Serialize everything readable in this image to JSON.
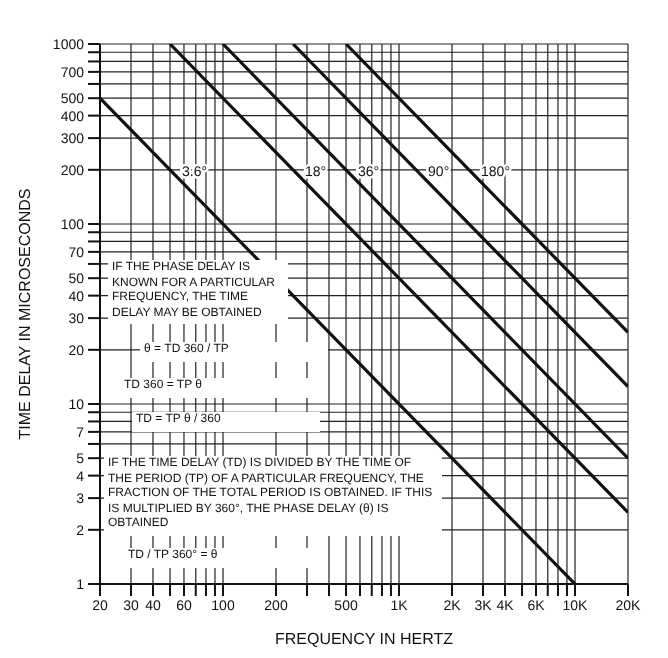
{
  "chart_data": {
    "type": "line",
    "xlabel": "FREQUENCY IN HERTZ",
    "ylabel": "TIME DELAY IN MICROSECONDS",
    "log": "xy",
    "grid": true,
    "marker": "none",
    "line_style": "solid",
    "xlim": [
      20,
      20000
    ],
    "ylim": [
      1,
      1000
    ],
    "xticks": [
      20,
      30,
      40,
      {
        "value": 50,
        "label": null
      },
      60,
      {
        "value": 70,
        "label": null
      },
      {
        "value": 80,
        "label": null
      },
      {
        "value": 90,
        "label": null
      },
      100,
      200,
      {
        "value": 300,
        "label": null
      },
      {
        "value": 400,
        "label": null
      },
      500,
      {
        "value": 600,
        "label": null
      },
      {
        "value": 700,
        "label": null
      },
      {
        "value": 800,
        "label": null
      },
      {
        "value": 900,
        "label": null
      },
      {
        "value": 1000,
        "label": "1K"
      },
      {
        "value": 2000,
        "label": "2K"
      },
      {
        "value": 3000,
        "label": "3K"
      },
      {
        "value": 4000,
        "label": "4K"
      },
      {
        "value": 5000,
        "label": null
      },
      {
        "value": 6000,
        "label": "6K"
      },
      {
        "value": 7000,
        "label": null
      },
      {
        "value": 8000,
        "label": null
      },
      {
        "value": 9000,
        "label": null
      },
      {
        "value": 10000,
        "label": "10K"
      },
      {
        "value": 20000,
        "label": "20K"
      }
    ],
    "yticks": [
      1,
      2,
      3,
      4,
      5,
      {
        "value": 6,
        "label": null
      },
      7,
      {
        "value": 8,
        "label": null
      },
      {
        "value": 9,
        "label": null
      },
      10,
      20,
      30,
      40,
      50,
      {
        "value": 60,
        "label": null
      },
      70,
      {
        "value": 80,
        "label": null
      },
      {
        "value": 90,
        "label": null
      },
      100,
      200,
      300,
      400,
      500,
      {
        "value": 600,
        "label": null
      },
      700,
      {
        "value": 800,
        "label": null
      },
      {
        "value": 900,
        "label": null
      },
      1000
    ],
    "series": [
      {
        "name": "3.6°",
        "color": "#111111",
        "x": [
          20,
          50,
          10000
        ],
        "values": [
          500,
          200,
          1
        ]
      },
      {
        "name": "18°",
        "color": "#111111",
        "x": [
          50,
          250,
          20000
        ],
        "values": [
          1000,
          200,
          2.5
        ]
      },
      {
        "name": "36°",
        "color": "#111111",
        "x": [
          100,
          500,
          20000
        ],
        "values": [
          1000,
          200,
          5
        ]
      },
      {
        "name": "90°",
        "color": "#111111",
        "x": [
          250,
          1250,
          20000
        ],
        "values": [
          1000,
          200,
          12.5
        ]
      },
      {
        "name": "180°",
        "color": "#111111",
        "x": [
          500,
          2500,
          20000
        ],
        "values": [
          1000,
          200,
          25
        ]
      }
    ],
    "annotations": [
      "IF THE PHASE DELAY IS KNOWN FOR A PARTICULAR FREQUENCY, THE TIME DELAY MAY BE OBTAINED",
      "θ = TD 360 / TP",
      "TD 360 = TP θ",
      "TD = TP θ / 360",
      "IF THE TIME DELAY (TD) IS DIVIDED BY THE TIME OF THE PERIOD (TP) OF A PARTICULAR FREQUENCY, THE FRACTION OF THE TOTAL PERIOD IS OBTAINED. IF THIS IS MULTIPLIED BY 360°, THE PHASE DELAY (θ) IS OBTAINED",
      "TD / TP 360° = θ"
    ]
  }
}
